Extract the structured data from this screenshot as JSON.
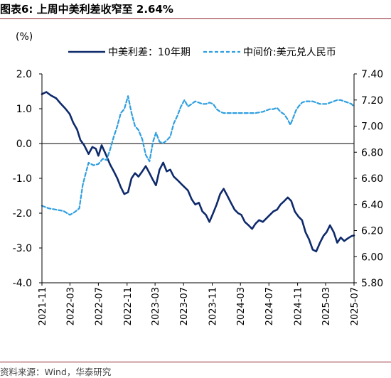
{
  "figure": {
    "title": "图表6:   上周中美利差收窄至 2.64%",
    "source": "资料来源：Wind，华泰研究"
  },
  "chart_data": {
    "type": "line",
    "left_axis_unit": "(%)",
    "ylim_left": [
      -4.0,
      2.0
    ],
    "ylim_right": [
      5.8,
      7.4
    ],
    "yticks_left": [
      "2.0",
      "1.0",
      "0.0",
      "-1.0",
      "-2.0",
      "-3.0",
      "-4.0"
    ],
    "yticks_right": [
      "7.40",
      "7.20",
      "7.00",
      "6.80",
      "6.60",
      "6.40",
      "6.20",
      "6.00",
      "5.80"
    ],
    "xticks": [
      "2021-11",
      "2022-03",
      "2022-07",
      "2022-11",
      "2023-03",
      "2023-07",
      "2023-11",
      "2024-03",
      "2024-07",
      "2024-11",
      "2025-03",
      "2025-07"
    ],
    "legend_position": "top",
    "series": [
      {
        "name": "中美利差：10年期",
        "axis": "left",
        "style": "solid",
        "color": "#0e2a6b",
        "points": [
          [
            "2021-11-01",
            1.42
          ],
          [
            "2021-11-20",
            1.48
          ],
          [
            "2021-12-10",
            1.38
          ],
          [
            "2022-01-01",
            1.3
          ],
          [
            "2022-01-20",
            1.15
          ],
          [
            "2022-02-10",
            1.0
          ],
          [
            "2022-02-28",
            0.85
          ],
          [
            "2022-03-15",
            0.6
          ],
          [
            "2022-04-01",
            0.4
          ],
          [
            "2022-04-15",
            0.1
          ],
          [
            "2022-05-01",
            -0.05
          ],
          [
            "2022-05-20",
            -0.3
          ],
          [
            "2022-06-05",
            -0.1
          ],
          [
            "2022-06-20",
            -0.15
          ],
          [
            "2022-07-01",
            -0.35
          ],
          [
            "2022-07-15",
            -0.05
          ],
          [
            "2022-08-01",
            -0.3
          ],
          [
            "2022-08-20",
            -0.6
          ],
          [
            "2022-09-05",
            -0.8
          ],
          [
            "2022-09-20",
            -1.0
          ],
          [
            "2022-10-05",
            -1.25
          ],
          [
            "2022-10-20",
            -1.45
          ],
          [
            "2022-11-05",
            -1.4
          ],
          [
            "2022-11-20",
            -1.0
          ],
          [
            "2022-12-05",
            -0.85
          ],
          [
            "2022-12-20",
            -0.95
          ],
          [
            "2023-01-05",
            -0.8
          ],
          [
            "2023-01-20",
            -0.65
          ],
          [
            "2023-02-05",
            -0.85
          ],
          [
            "2023-02-20",
            -1.05
          ],
          [
            "2023-03-05",
            -1.2
          ],
          [
            "2023-03-20",
            -0.75
          ],
          [
            "2023-04-05",
            -0.55
          ],
          [
            "2023-04-20",
            -0.8
          ],
          [
            "2023-05-05",
            -0.75
          ],
          [
            "2023-05-20",
            -0.95
          ],
          [
            "2023-06-05",
            -1.05
          ],
          [
            "2023-06-20",
            -1.15
          ],
          [
            "2023-07-05",
            -1.25
          ],
          [
            "2023-07-20",
            -1.35
          ],
          [
            "2023-08-05",
            -1.6
          ],
          [
            "2023-08-20",
            -1.75
          ],
          [
            "2023-09-05",
            -1.7
          ],
          [
            "2023-09-20",
            -1.95
          ],
          [
            "2023-10-05",
            -2.05
          ],
          [
            "2023-10-20",
            -2.25
          ],
          [
            "2023-11-05",
            -2.0
          ],
          [
            "2023-11-20",
            -1.75
          ],
          [
            "2023-12-05",
            -1.45
          ],
          [
            "2023-12-20",
            -1.3
          ],
          [
            "2024-01-05",
            -1.5
          ],
          [
            "2024-01-20",
            -1.7
          ],
          [
            "2024-02-05",
            -1.9
          ],
          [
            "2024-02-20",
            -2.0
          ],
          [
            "2024-03-05",
            -2.05
          ],
          [
            "2024-03-20",
            -2.25
          ],
          [
            "2024-04-05",
            -2.35
          ],
          [
            "2024-04-20",
            -2.45
          ],
          [
            "2024-05-05",
            -2.3
          ],
          [
            "2024-05-20",
            -2.2
          ],
          [
            "2024-06-05",
            -2.25
          ],
          [
            "2024-06-20",
            -2.15
          ],
          [
            "2024-07-05",
            -2.05
          ],
          [
            "2024-07-20",
            -1.95
          ],
          [
            "2024-08-05",
            -1.9
          ],
          [
            "2024-08-20",
            -1.75
          ],
          [
            "2024-09-05",
            -1.65
          ],
          [
            "2024-09-20",
            -1.55
          ],
          [
            "2024-10-05",
            -1.65
          ],
          [
            "2024-10-20",
            -1.95
          ],
          [
            "2024-11-05",
            -2.1
          ],
          [
            "2024-11-20",
            -2.2
          ],
          [
            "2024-12-05",
            -2.55
          ],
          [
            "2024-12-20",
            -2.75
          ],
          [
            "2025-01-05",
            -3.05
          ],
          [
            "2025-01-20",
            -3.1
          ],
          [
            "2025-02-05",
            -2.85
          ],
          [
            "2025-02-20",
            -2.65
          ],
          [
            "2025-03-05",
            -2.55
          ],
          [
            "2025-03-20",
            -2.35
          ],
          [
            "2025-04-05",
            -2.55
          ],
          [
            "2025-04-20",
            -2.85
          ],
          [
            "2025-05-05",
            -2.7
          ],
          [
            "2025-05-20",
            -2.8
          ],
          [
            "2025-06-05",
            -2.72
          ],
          [
            "2025-06-20",
            -2.66
          ],
          [
            "2025-07-01",
            -2.64
          ]
        ]
      },
      {
        "name": "中间价:美元兑人民币",
        "axis": "right",
        "style": "dashed",
        "color": "#2f9fe0",
        "points": [
          [
            "2021-11-01",
            6.39
          ],
          [
            "2021-12-01",
            6.37
          ],
          [
            "2022-01-01",
            6.36
          ],
          [
            "2022-02-01",
            6.35
          ],
          [
            "2022-03-01",
            6.32
          ],
          [
            "2022-03-20",
            6.34
          ],
          [
            "2022-04-10",
            6.37
          ],
          [
            "2022-04-25",
            6.55
          ],
          [
            "2022-05-05",
            6.62
          ],
          [
            "2022-05-20",
            6.72
          ],
          [
            "2022-06-10",
            6.7
          ],
          [
            "2022-07-01",
            6.71
          ],
          [
            "2022-07-20",
            6.75
          ],
          [
            "2022-08-05",
            6.74
          ],
          [
            "2022-08-20",
            6.82
          ],
          [
            "2022-09-05",
            6.92
          ],
          [
            "2022-09-20",
            7.0
          ],
          [
            "2022-10-05",
            7.1
          ],
          [
            "2022-10-20",
            7.13
          ],
          [
            "2022-11-05",
            7.23
          ],
          [
            "2022-11-20",
            7.1
          ],
          [
            "2022-12-05",
            7.0
          ],
          [
            "2022-12-20",
            6.97
          ],
          [
            "2023-01-05",
            6.9
          ],
          [
            "2023-01-20",
            6.78
          ],
          [
            "2023-02-05",
            6.73
          ],
          [
            "2023-02-20",
            6.88
          ],
          [
            "2023-03-05",
            6.95
          ],
          [
            "2023-03-20",
            6.88
          ],
          [
            "2023-04-05",
            6.87
          ],
          [
            "2023-04-20",
            6.89
          ],
          [
            "2023-05-05",
            6.92
          ],
          [
            "2023-05-20",
            7.02
          ],
          [
            "2023-06-05",
            7.08
          ],
          [
            "2023-06-20",
            7.15
          ],
          [
            "2023-07-05",
            7.2
          ],
          [
            "2023-07-20",
            7.15
          ],
          [
            "2023-08-05",
            7.17
          ],
          [
            "2023-08-20",
            7.19
          ],
          [
            "2023-09-05",
            7.18
          ],
          [
            "2023-09-20",
            7.17
          ],
          [
            "2023-10-05",
            7.17
          ],
          [
            "2023-10-20",
            7.18
          ],
          [
            "2023-11-05",
            7.17
          ],
          [
            "2023-11-20",
            7.13
          ],
          [
            "2023-12-05",
            7.11
          ],
          [
            "2023-12-20",
            7.1
          ],
          [
            "2024-01-05",
            7.1
          ],
          [
            "2024-02-05",
            7.1
          ],
          [
            "2024-03-05",
            7.1
          ],
          [
            "2024-04-05",
            7.1
          ],
          [
            "2024-05-05",
            7.1
          ],
          [
            "2024-06-05",
            7.11
          ],
          [
            "2024-07-05",
            7.13
          ],
          [
            "2024-07-20",
            7.13
          ],
          [
            "2024-08-05",
            7.14
          ],
          [
            "2024-08-20",
            7.11
          ],
          [
            "2024-09-05",
            7.09
          ],
          [
            "2024-09-20",
            7.05
          ],
          [
            "2024-10-01",
            7.01
          ],
          [
            "2024-10-10",
            7.05
          ],
          [
            "2024-10-25",
            7.12
          ],
          [
            "2024-11-05",
            7.15
          ],
          [
            "2024-11-20",
            7.18
          ],
          [
            "2024-12-05",
            7.19
          ],
          [
            "2024-12-20",
            7.19
          ],
          [
            "2025-01-05",
            7.19
          ],
          [
            "2025-02-05",
            7.17
          ],
          [
            "2025-03-05",
            7.17
          ],
          [
            "2025-04-05",
            7.19
          ],
          [
            "2025-04-20",
            7.2
          ],
          [
            "2025-05-05",
            7.2
          ],
          [
            "2025-05-20",
            7.19
          ],
          [
            "2025-06-05",
            7.18
          ],
          [
            "2025-06-20",
            7.17
          ],
          [
            "2025-07-01",
            7.15
          ]
        ]
      }
    ]
  }
}
